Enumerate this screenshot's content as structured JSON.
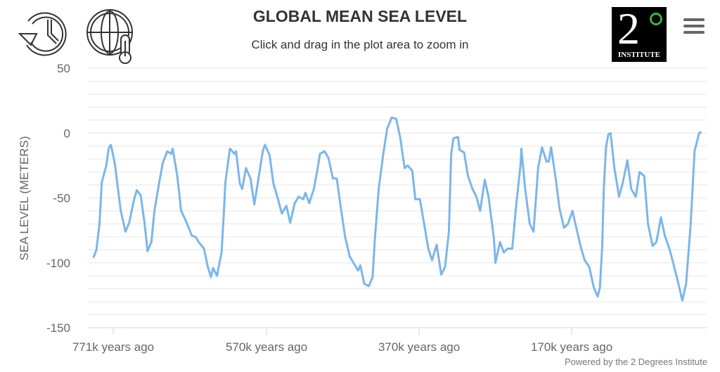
{
  "header": {
    "title": "GLOBAL MEAN SEA LEVEL",
    "subtitle": "Click and drag in the plot area to zoom in",
    "icons": [
      "history-icon",
      "globe-thermometer-icon"
    ],
    "menu_icon": "hamburger-menu-icon",
    "logo": {
      "numeral": "2",
      "degree": "°",
      "text": "INSTITUTE"
    }
  },
  "credits": "Powered by the 2 Degrees Institute",
  "colors": {
    "line": "#7cb5ec",
    "grid": "#e6e6e6",
    "text": "#333333",
    "logo_green": "#3cb043"
  },
  "chart_data": {
    "type": "line",
    "title": "GLOBAL MEAN SEA LEVEL",
    "ylabel": "SEA LEVEL (METERS)",
    "xlabel": "",
    "ylim": [
      -150,
      50
    ],
    "yticks": [
      50,
      0,
      -50,
      -100,
      -150
    ],
    "ytick_labels": [
      "50",
      "0",
      "-50",
      "-100",
      "-150"
    ],
    "grid_step": 10,
    "grid": true,
    "x_unit": "thousand years ago",
    "xticks": [
      771,
      570,
      370,
      170
    ],
    "xtick_labels": [
      "771k years ago",
      "570k years ago",
      "370k years ago",
      "170k years ago"
    ],
    "x": [
      797,
      793,
      789,
      786,
      780,
      777,
      774,
      769,
      765,
      761,
      755,
      750,
      744,
      740,
      735,
      730,
      726,
      721,
      717,
      711,
      706,
      700,
      695,
      693,
      687,
      682,
      677,
      672,
      668,
      663,
      659,
      652,
      647,
      643,
      640,
      635,
      629,
      626,
      624,
      618,
      612,
      610,
      605,
      602,
      597,
      591,
      586,
      580,
      575,
      572,
      566,
      561,
      555,
      550,
      544,
      539,
      533,
      528,
      522,
      519,
      514,
      508,
      503,
      500,
      494,
      489,
      483,
      478,
      472,
      467,
      461,
      456,
      450,
      447,
      442,
      436,
      431,
      428,
      423,
      417,
      412,
      406,
      400,
      395,
      389,
      385,
      379,
      375,
      369,
      364,
      358,
      353,
      347,
      341,
      336,
      331,
      328,
      325,
      319,
      317,
      311,
      306,
      300,
      295,
      290,
      284,
      279,
      272,
      270,
      264,
      259,
      254,
      248,
      243,
      237,
      236,
      231,
      225,
      220,
      214,
      209,
      203,
      200,
      197,
      191,
      186,
      180,
      175,
      169,
      164,
      158,
      153,
      147,
      141,
      136,
      133,
      130,
      128,
      125,
      122,
      119,
      114,
      108,
      103,
      97,
      92,
      86,
      81,
      75,
      70,
      64,
      59,
      53,
      48,
      42,
      37,
      31,
      25,
      20,
      14,
      9,
      3,
      0
    ],
    "y": [
      -96,
      -90,
      -70,
      -38,
      -25,
      -12,
      -9,
      -23,
      -42,
      -60,
      -76,
      -69,
      -52,
      -44,
      -48,
      -69,
      -91,
      -84,
      -60,
      -39,
      -23,
      -14,
      -16,
      -12,
      -33,
      -60,
      -66,
      -73,
      -79,
      -80,
      -84,
      -89,
      -103,
      -111,
      -104,
      -110,
      -92,
      -62,
      -38,
      -12,
      -16,
      -14,
      -39,
      -43,
      -27,
      -35,
      -55,
      -33,
      -14,
      -9,
      -17,
      -39,
      -51,
      -62,
      -56,
      -69,
      -54,
      -49,
      -51,
      -46,
      -54,
      -43,
      -27,
      -16,
      -14,
      -19,
      -35,
      -35,
      -60,
      -80,
      -95,
      -100,
      -106,
      -102,
      -116,
      -118,
      -111,
      -81,
      -43,
      -16,
      3,
      12,
      11,
      -3,
      -27,
      -25,
      -29,
      -51,
      -51,
      -68,
      -89,
      -98,
      -86,
      -109,
      -103,
      -76,
      -16,
      -4,
      -3,
      -13,
      -15,
      -33,
      -43,
      -49,
      -60,
      -36,
      -49,
      -81,
      -100,
      -84,
      -92,
      -89,
      -89,
      -57,
      -24,
      -12,
      -43,
      -70,
      -76,
      -27,
      -11,
      -22,
      -22,
      -11,
      -35,
      -58,
      -73,
      -70,
      -60,
      -73,
      -88,
      -98,
      -103,
      -119,
      -126,
      -119,
      -87,
      -43,
      -11,
      -1,
      0,
      -27,
      -49,
      -38,
      -21,
      -43,
      -49,
      -30,
      -33,
      -70,
      -87,
      -84,
      -65,
      -79,
      -89,
      -100,
      -114,
      -129,
      -116,
      -70,
      -14,
      0,
      1
    ]
  }
}
